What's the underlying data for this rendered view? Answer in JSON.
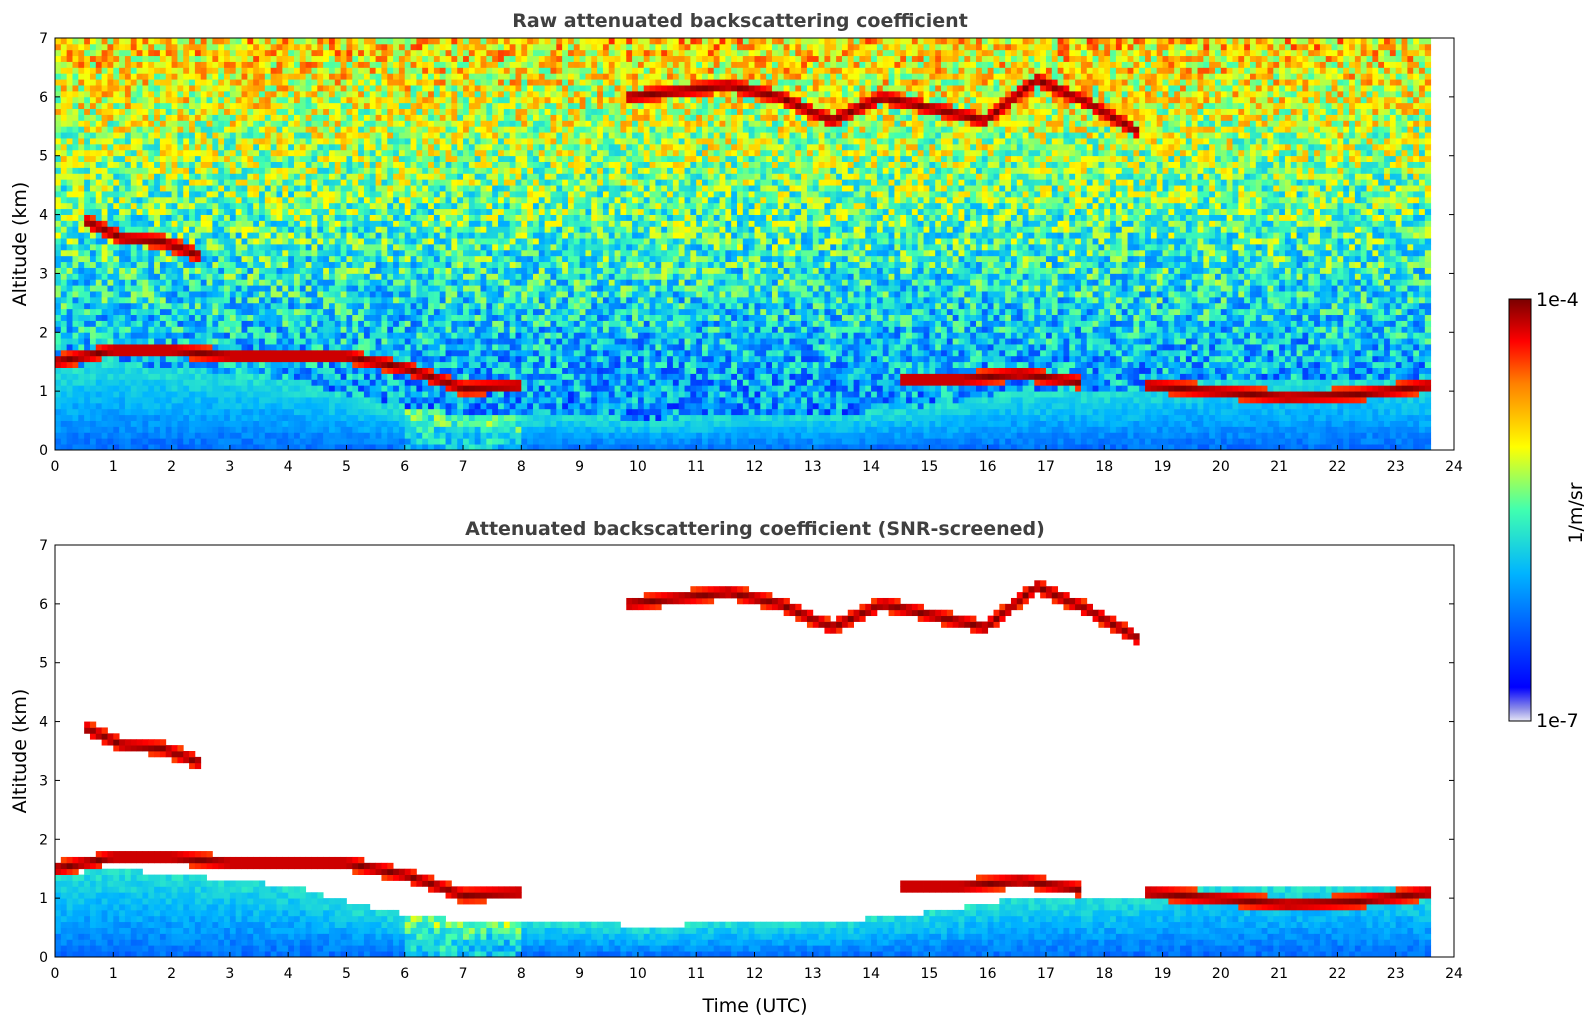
{
  "chart_data": [
    {
      "type": "heatmap",
      "title": "Raw attenuated backscattering coefficient",
      "xlabel": "",
      "ylabel": "Altitude (km)",
      "xlim": [
        0,
        24
      ],
      "ylim": [
        0,
        7
      ],
      "xticks": [
        "0",
        "1",
        "2",
        "3",
        "4",
        "5",
        "6",
        "7",
        "8",
        "9",
        "10",
        "11",
        "12",
        "13",
        "14",
        "15",
        "16",
        "17",
        "18",
        "19",
        "20",
        "21",
        "22",
        "23",
        "24"
      ],
      "yticks": [
        "0",
        "1",
        "2",
        "3",
        "4",
        "5",
        "6",
        "7"
      ],
      "data_end_hour": 23.6,
      "layers": [
        {
          "feature": "boundary-layer aerosol",
          "time": [
            0,
            23.6
          ],
          "altitude_top": [
            1.4,
            1.5,
            1.4,
            1.3,
            1.2,
            0.9,
            0.7,
            0.6,
            0.6,
            0.6,
            0.5,
            0.6,
            0.6,
            0.6,
            0.7,
            0.8,
            1.0,
            1.0,
            1.0,
            1.2,
            1.2,
            1.2,
            1.2,
            1.1
          ]
        },
        {
          "feature": "cloud",
          "time": [
            0,
            8
          ],
          "altitude": [
            1.5,
            1.7,
            1.7,
            1.6,
            1.6,
            1.6,
            1.4,
            1.05,
            1.1
          ]
        },
        {
          "feature": "cloud",
          "time": [
            0.5,
            2.5
          ],
          "altitude": [
            3.9,
            3.6,
            3.55,
            3.3
          ]
        },
        {
          "feature": "cloud",
          "time": [
            9.8,
            18.6
          ],
          "altitude": [
            6.0,
            6.1,
            6.2,
            6.0,
            5.6,
            6.0,
            5.8,
            5.6,
            6.3,
            5.9,
            5.4
          ]
        },
        {
          "feature": "cloud",
          "time": [
            14.5,
            17.6
          ],
          "altitude": [
            1.2,
            1.2,
            1.3,
            1.15
          ]
        },
        {
          "feature": "cloud",
          "time": [
            18.7,
            23.6
          ],
          "altitude": [
            1.1,
            1.0,
            0.9,
            0.95,
            1.1
          ]
        }
      ]
    },
    {
      "type": "heatmap",
      "title": "Attenuated backscattering coefficient (SNR-screened)",
      "xlabel": "Time (UTC)",
      "ylabel": "Altitude (km)",
      "xlim": [
        0,
        24
      ],
      "ylim": [
        0,
        7
      ],
      "xticks": [
        "0",
        "1",
        "2",
        "3",
        "4",
        "5",
        "6",
        "7",
        "8",
        "9",
        "10",
        "11",
        "12",
        "13",
        "14",
        "15",
        "16",
        "17",
        "18",
        "19",
        "20",
        "21",
        "22",
        "23",
        "24"
      ],
      "yticks": [
        "0",
        "1",
        "2",
        "3",
        "4",
        "5",
        "6",
        "7"
      ],
      "data_end_hour": 23.6
    }
  ],
  "colorbar": {
    "label": "1/m/sr",
    "max_label": "1e-4",
    "min_label": "1e-7",
    "scale": "log",
    "range": [
      1e-07,
      0.0001
    ],
    "colors": [
      "#e6e6f5",
      "#0000ff",
      "#00c8ff",
      "#66ffa0",
      "#ffff00",
      "#ff8000",
      "#ff0000",
      "#800000"
    ]
  }
}
